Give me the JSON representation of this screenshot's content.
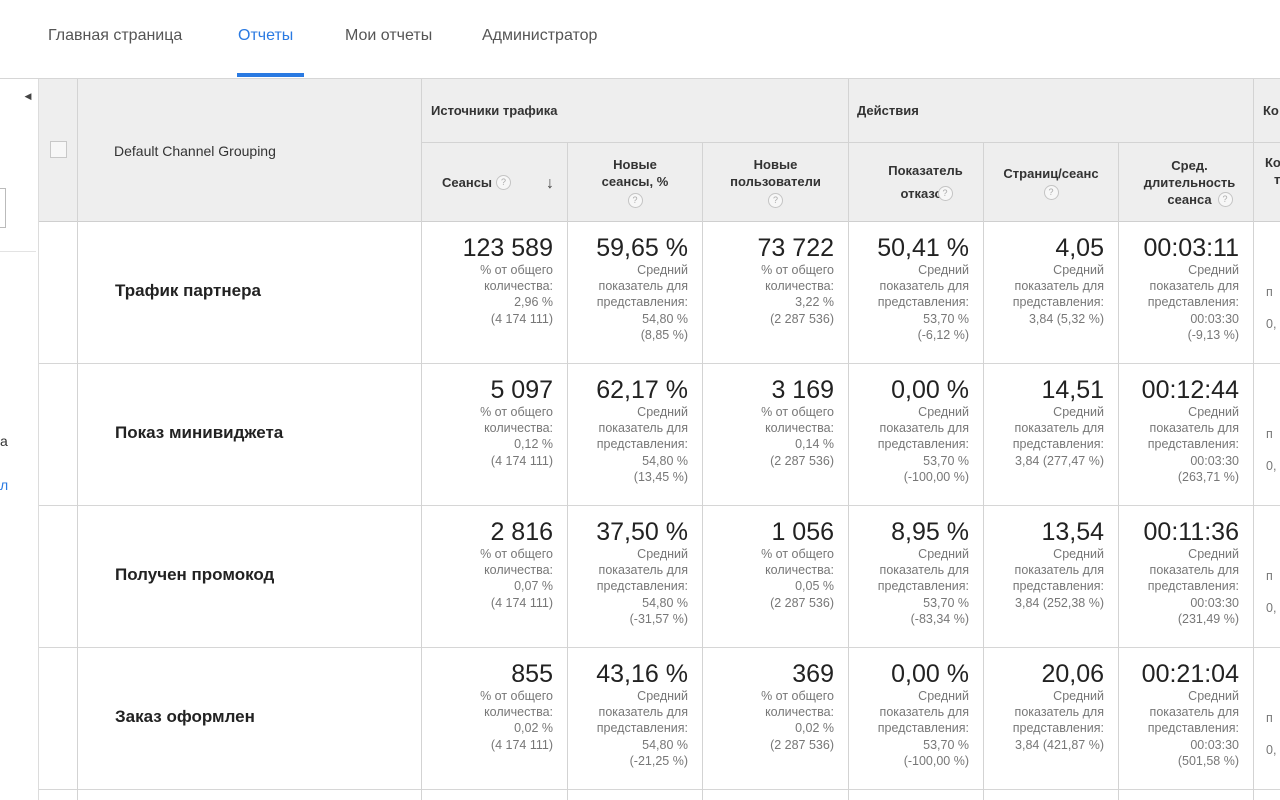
{
  "nav": {
    "tabs": [
      {
        "label": "Главная страница"
      },
      {
        "label": "Отчеты"
      },
      {
        "label": "Мои отчеты"
      },
      {
        "label": "Администратор"
      }
    ],
    "active_index": 1
  },
  "left_panel": {
    "collapse_icon": "triangle-left-icon",
    "fragments": [
      "а",
      "л"
    ]
  },
  "table": {
    "dimension_header": "Default Channel Grouping",
    "groups": {
      "acquisition": "Источники трафика",
      "behavior": "Действия",
      "conversions_fragment": "Ко"
    },
    "columns": {
      "sessions": "Сеансы",
      "new_sessions": "Новые сеансы, %",
      "new_users": "Новые пользователи",
      "bounce": "Показатель отказов",
      "pages": "Страниц/сеанс",
      "duration": "Сред. длительность сеанса",
      "edge_fragment_1": "Ко",
      "edge_fragment_2": "т"
    },
    "help_icon": "?",
    "sort_icon": "arrow-down-icon",
    "rows": [
      {
        "label": "Трафик партнера",
        "sessions": {
          "value": "123 589",
          "l1": "% от общего",
          "l2": "количества:",
          "l3": "2,96 %",
          "l4": "(4 174 111)"
        },
        "new_sessions": {
          "value": "59,65 %",
          "l1": "Средний",
          "l2": "показатель для",
          "l3": "представления:",
          "l4": "54,80 %",
          "l5": "(8,85 %)"
        },
        "new_users": {
          "value": "73 722",
          "l1": "% от общего",
          "l2": "количества:",
          "l3": "3,22 %",
          "l4": "(2 287 536)"
        },
        "bounce": {
          "value": "50,41 %",
          "l1": "Средний",
          "l2": "показатель для",
          "l3": "представления:",
          "l4": "53,70 %",
          "l5": "(-6,12 %)"
        },
        "pages": {
          "value": "4,05",
          "l1": "Средний",
          "l2": "показатель для",
          "l3": "представления:",
          "l4": "3,84 (5,32 %)"
        },
        "duration": {
          "value": "00:03:11",
          "l1": "Средний",
          "l2": "показатель для",
          "l3": "представления:",
          "l4": "00:03:30",
          "l5": "(-9,13 %)"
        },
        "edge": [
          "п",
          "0,"
        ]
      },
      {
        "label": "Показ минивиджета",
        "sessions": {
          "value": "5 097",
          "l1": "% от общего",
          "l2": "количества:",
          "l3": "0,12 %",
          "l4": "(4 174 111)"
        },
        "new_sessions": {
          "value": "62,17 %",
          "l1": "Средний",
          "l2": "показатель для",
          "l3": "представления:",
          "l4": "54,80 %",
          "l5": "(13,45 %)"
        },
        "new_users": {
          "value": "3 169",
          "l1": "% от общего",
          "l2": "количества:",
          "l3": "0,14 %",
          "l4": "(2 287 536)"
        },
        "bounce": {
          "value": "0,00 %",
          "l1": "Средний",
          "l2": "показатель для",
          "l3": "представления:",
          "l4": "53,70 %",
          "l5": "(-100,00 %)"
        },
        "pages": {
          "value": "14,51",
          "l1": "Средний",
          "l2": "показатель для",
          "l3": "представления:",
          "l4": "3,84 (277,47 %)"
        },
        "duration": {
          "value": "00:12:44",
          "l1": "Средний",
          "l2": "показатель для",
          "l3": "представления:",
          "l4": "00:03:30",
          "l5": "(263,71 %)"
        },
        "edge": [
          "п",
          "0,"
        ]
      },
      {
        "label": "Получен промокод",
        "sessions": {
          "value": "2 816",
          "l1": "% от общего",
          "l2": "количества:",
          "l3": "0,07 %",
          "l4": "(4 174 111)"
        },
        "new_sessions": {
          "value": "37,50 %",
          "l1": "Средний",
          "l2": "показатель для",
          "l3": "представления:",
          "l4": "54,80 %",
          "l5": "(-31,57 %)"
        },
        "new_users": {
          "value": "1 056",
          "l1": "% от общего",
          "l2": "количества:",
          "l3": "0,05 %",
          "l4": "(2 287 536)"
        },
        "bounce": {
          "value": "8,95 %",
          "l1": "Средний",
          "l2": "показатель для",
          "l3": "представления:",
          "l4": "53,70 %",
          "l5": "(-83,34 %)"
        },
        "pages": {
          "value": "13,54",
          "l1": "Средний",
          "l2": "показатель для",
          "l3": "представления:",
          "l4": "3,84 (252,38 %)"
        },
        "duration": {
          "value": "00:11:36",
          "l1": "Средний",
          "l2": "показатель для",
          "l3": "представления:",
          "l4": "00:03:30",
          "l5": "(231,49 %)"
        },
        "edge": [
          "п",
          "0,"
        ]
      },
      {
        "label": "Заказ оформлен",
        "sessions": {
          "value": "855",
          "l1": "% от общего",
          "l2": "количества:",
          "l3": "0,02 %",
          "l4": "(4 174 111)"
        },
        "new_sessions": {
          "value": "43,16 %",
          "l1": "Средний",
          "l2": "показатель для",
          "l3": "представления:",
          "l4": "54,80 %",
          "l5": "(-21,25 %)"
        },
        "new_users": {
          "value": "369",
          "l1": "% от общего",
          "l2": "количества:",
          "l3": "0,02 %",
          "l4": "(2 287 536)"
        },
        "bounce": {
          "value": "0,00 %",
          "l1": "Средний",
          "l2": "показатель для",
          "l3": "представления:",
          "l4": "53,70 %",
          "l5": "(-100,00 %)"
        },
        "pages": {
          "value": "20,06",
          "l1": "Средний",
          "l2": "показатель для",
          "l3": "представления:",
          "l4": "3,84 (421,87 %)"
        },
        "duration": {
          "value": "00:21:04",
          "l1": "Средний",
          "l2": "показатель для",
          "l3": "представления:",
          "l4": "00:03:30",
          "l5": "(501,58 %)"
        },
        "edge": [
          "п",
          "0,"
        ]
      }
    ]
  }
}
